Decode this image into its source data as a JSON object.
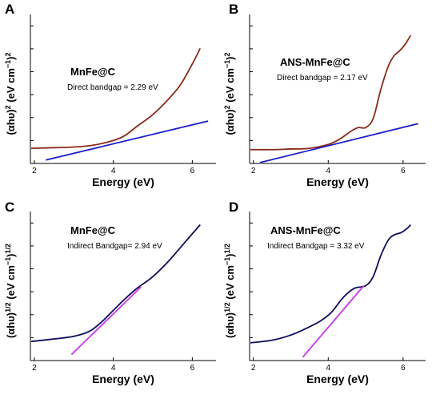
{
  "chart_data": [
    {
      "type": "line",
      "panel": "A",
      "xlabel": "Energy (eV)",
      "ylabel": "(αhυ)2 (eV cm−1)2",
      "xticks": [
        "2",
        "4",
        "6"
      ],
      "xlim": [
        1.9,
        6.6
      ],
      "annotation_title": "MnFe@C",
      "annotation_text": "Direct bandgap = 2.29 eV",
      "series": [
        {
          "color": "#8b2a1a",
          "x": [
            1.9,
            2.5,
            3.0,
            3.5,
            4.0,
            4.3,
            4.6,
            5.0,
            5.4,
            5.7,
            6.0,
            6.2
          ],
          "y": [
            0.03,
            0.035,
            0.04,
            0.055,
            0.09,
            0.13,
            0.2,
            0.29,
            0.41,
            0.52,
            0.68,
            0.8
          ]
        },
        {
          "color": "#1c1ccc",
          "x": [
            2.29,
            6.4
          ],
          "y": [
            -0.06,
            0.24
          ]
        }
      ]
    },
    {
      "type": "line",
      "panel": "B",
      "xlabel": "Energy (eV)",
      "ylabel": "(αhυ)2 (eV cm−1)2",
      "xticks": [
        "2",
        "4",
        "6"
      ],
      "xlim": [
        1.9,
        6.6
      ],
      "annotation_title": "ANS-MnFe@C",
      "annotation_text": "Direct bandgap = 2.17 eV",
      "series": [
        {
          "color": "#8b2a1a",
          "x": [
            1.9,
            2.5,
            3.0,
            3.5,
            4.0,
            4.3,
            4.6,
            4.8,
            5.0,
            5.2,
            5.4,
            5.6,
            5.75,
            5.9,
            6.05,
            6.2
          ],
          "y": [
            0.02,
            0.02,
            0.025,
            0.03,
            0.06,
            0.1,
            0.16,
            0.19,
            0.19,
            0.26,
            0.48,
            0.66,
            0.74,
            0.78,
            0.83,
            0.9
          ]
        },
        {
          "color": "#1c1ccc",
          "x": [
            2.17,
            6.4
          ],
          "y": [
            -0.08,
            0.22
          ]
        }
      ]
    },
    {
      "type": "line",
      "panel": "C",
      "xlabel": "Energy (eV)",
      "ylabel": "(αhυ)1/2 (eV cm−1)1/2",
      "xticks": [
        "2",
        "4",
        "6"
      ],
      "xlim": [
        1.9,
        6.6
      ],
      "annotation_title": "MnFe@C",
      "annotation_text": "Indirect Bandgap= 2.94 eV",
      "series": [
        {
          "color": "#0c0c5c",
          "x": [
            1.9,
            2.5,
            3.0,
            3.4,
            3.7,
            4.0,
            4.3,
            4.6,
            5.0,
            5.4,
            5.8,
            6.2
          ],
          "y": [
            0.06,
            0.08,
            0.1,
            0.14,
            0.21,
            0.3,
            0.39,
            0.47,
            0.56,
            0.68,
            0.82,
            0.96
          ]
        },
        {
          "color": "#cc33ee",
          "x": [
            2.94,
            4.7
          ],
          "y": [
            -0.04,
            0.48
          ]
        }
      ]
    },
    {
      "type": "line",
      "panel": "D",
      "xlabel": "Energy (eV)",
      "ylabel": "(αhυ)1/2 (eV cm−1)1/2",
      "xticks": [
        "2",
        "4",
        "6"
      ],
      "xlim": [
        1.9,
        6.6
      ],
      "annotation_title": "ANS-MnFe@C",
      "annotation_text": "Indirect Bandgap = 3.32 eV",
      "series": [
        {
          "color": "#0c0c5c",
          "x": [
            1.9,
            2.5,
            3.0,
            3.4,
            3.8,
            4.1,
            4.4,
            4.7,
            5.0,
            5.2,
            5.4,
            5.6,
            5.75,
            5.95,
            6.1,
            6.2
          ],
          "y": [
            0.05,
            0.07,
            0.11,
            0.16,
            0.22,
            0.29,
            0.4,
            0.47,
            0.49,
            0.56,
            0.72,
            0.84,
            0.88,
            0.9,
            0.93,
            0.96
          ]
        },
        {
          "color": "#cc33ee",
          "x": [
            3.32,
            4.95
          ],
          "y": [
            -0.06,
            0.49
          ]
        }
      ]
    }
  ]
}
